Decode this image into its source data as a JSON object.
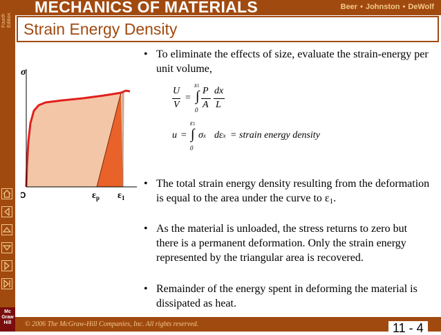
{
  "header": {
    "title": "MECHANICS OF MATERIALS",
    "authors": [
      "Beer",
      "Johnston",
      "DeWolf"
    ],
    "edition": [
      "Fourth",
      "Edition"
    ]
  },
  "slide": {
    "title": "Strain Energy Density"
  },
  "figure": {
    "y_axis_label": "σ",
    "origin_label": "O",
    "x_label_1": "ε",
    "x_label_1_sub": "p",
    "x_label_2": "ε",
    "x_label_2_sub": "1"
  },
  "bullets": [
    {
      "text": "To eliminate the effects of size, evaluate the strain-energy per unit volume,"
    },
    {
      "text": "The total strain energy density resulting from the deformation is equal to the area under the curve to ε",
      "sub": "1",
      "end": "."
    },
    {
      "text": "As the material is unloaded, the stress returns to zero but there is a permanent deformation.  Only the strain energy represented by the triangular area is recovered."
    },
    {
      "text": "Remainder of the energy spent in deforming the material is dissipated as heat."
    }
  ],
  "equations": {
    "eq1": {
      "U": "U",
      "V": "V",
      "equals": "=",
      "upper": "x",
      "upper_sub": "1",
      "lower": "0",
      "P": "P",
      "A": "A",
      "dx": "dx",
      "L": "L"
    },
    "eq2": {
      "u": "u",
      "equals": "=",
      "upper": "ε",
      "upper_sub": "1",
      "lower": "0",
      "sigma": "σ",
      "sigma_sub": "x",
      "deps": "dε",
      "deps_sub": "x",
      "equals2": "=",
      "result": "strain energy density"
    }
  },
  "footer": {
    "copyright": "© 2006 The McGraw-Hill Companies, Inc. All rights reserved.",
    "page": "11 - 4",
    "publisher_logo": [
      "Mc",
      "Graw",
      "Hill"
    ]
  },
  "colors": {
    "brand": "#a14a10",
    "accent_text": "#f3c98a",
    "curve": "#e0201c",
    "fill_light": "#f4c6a8",
    "fill_triangle": "#e8622a"
  },
  "icons": [
    "home-icon",
    "back-icon",
    "up-icon",
    "down-icon",
    "forward-icon",
    "end-icon"
  ]
}
